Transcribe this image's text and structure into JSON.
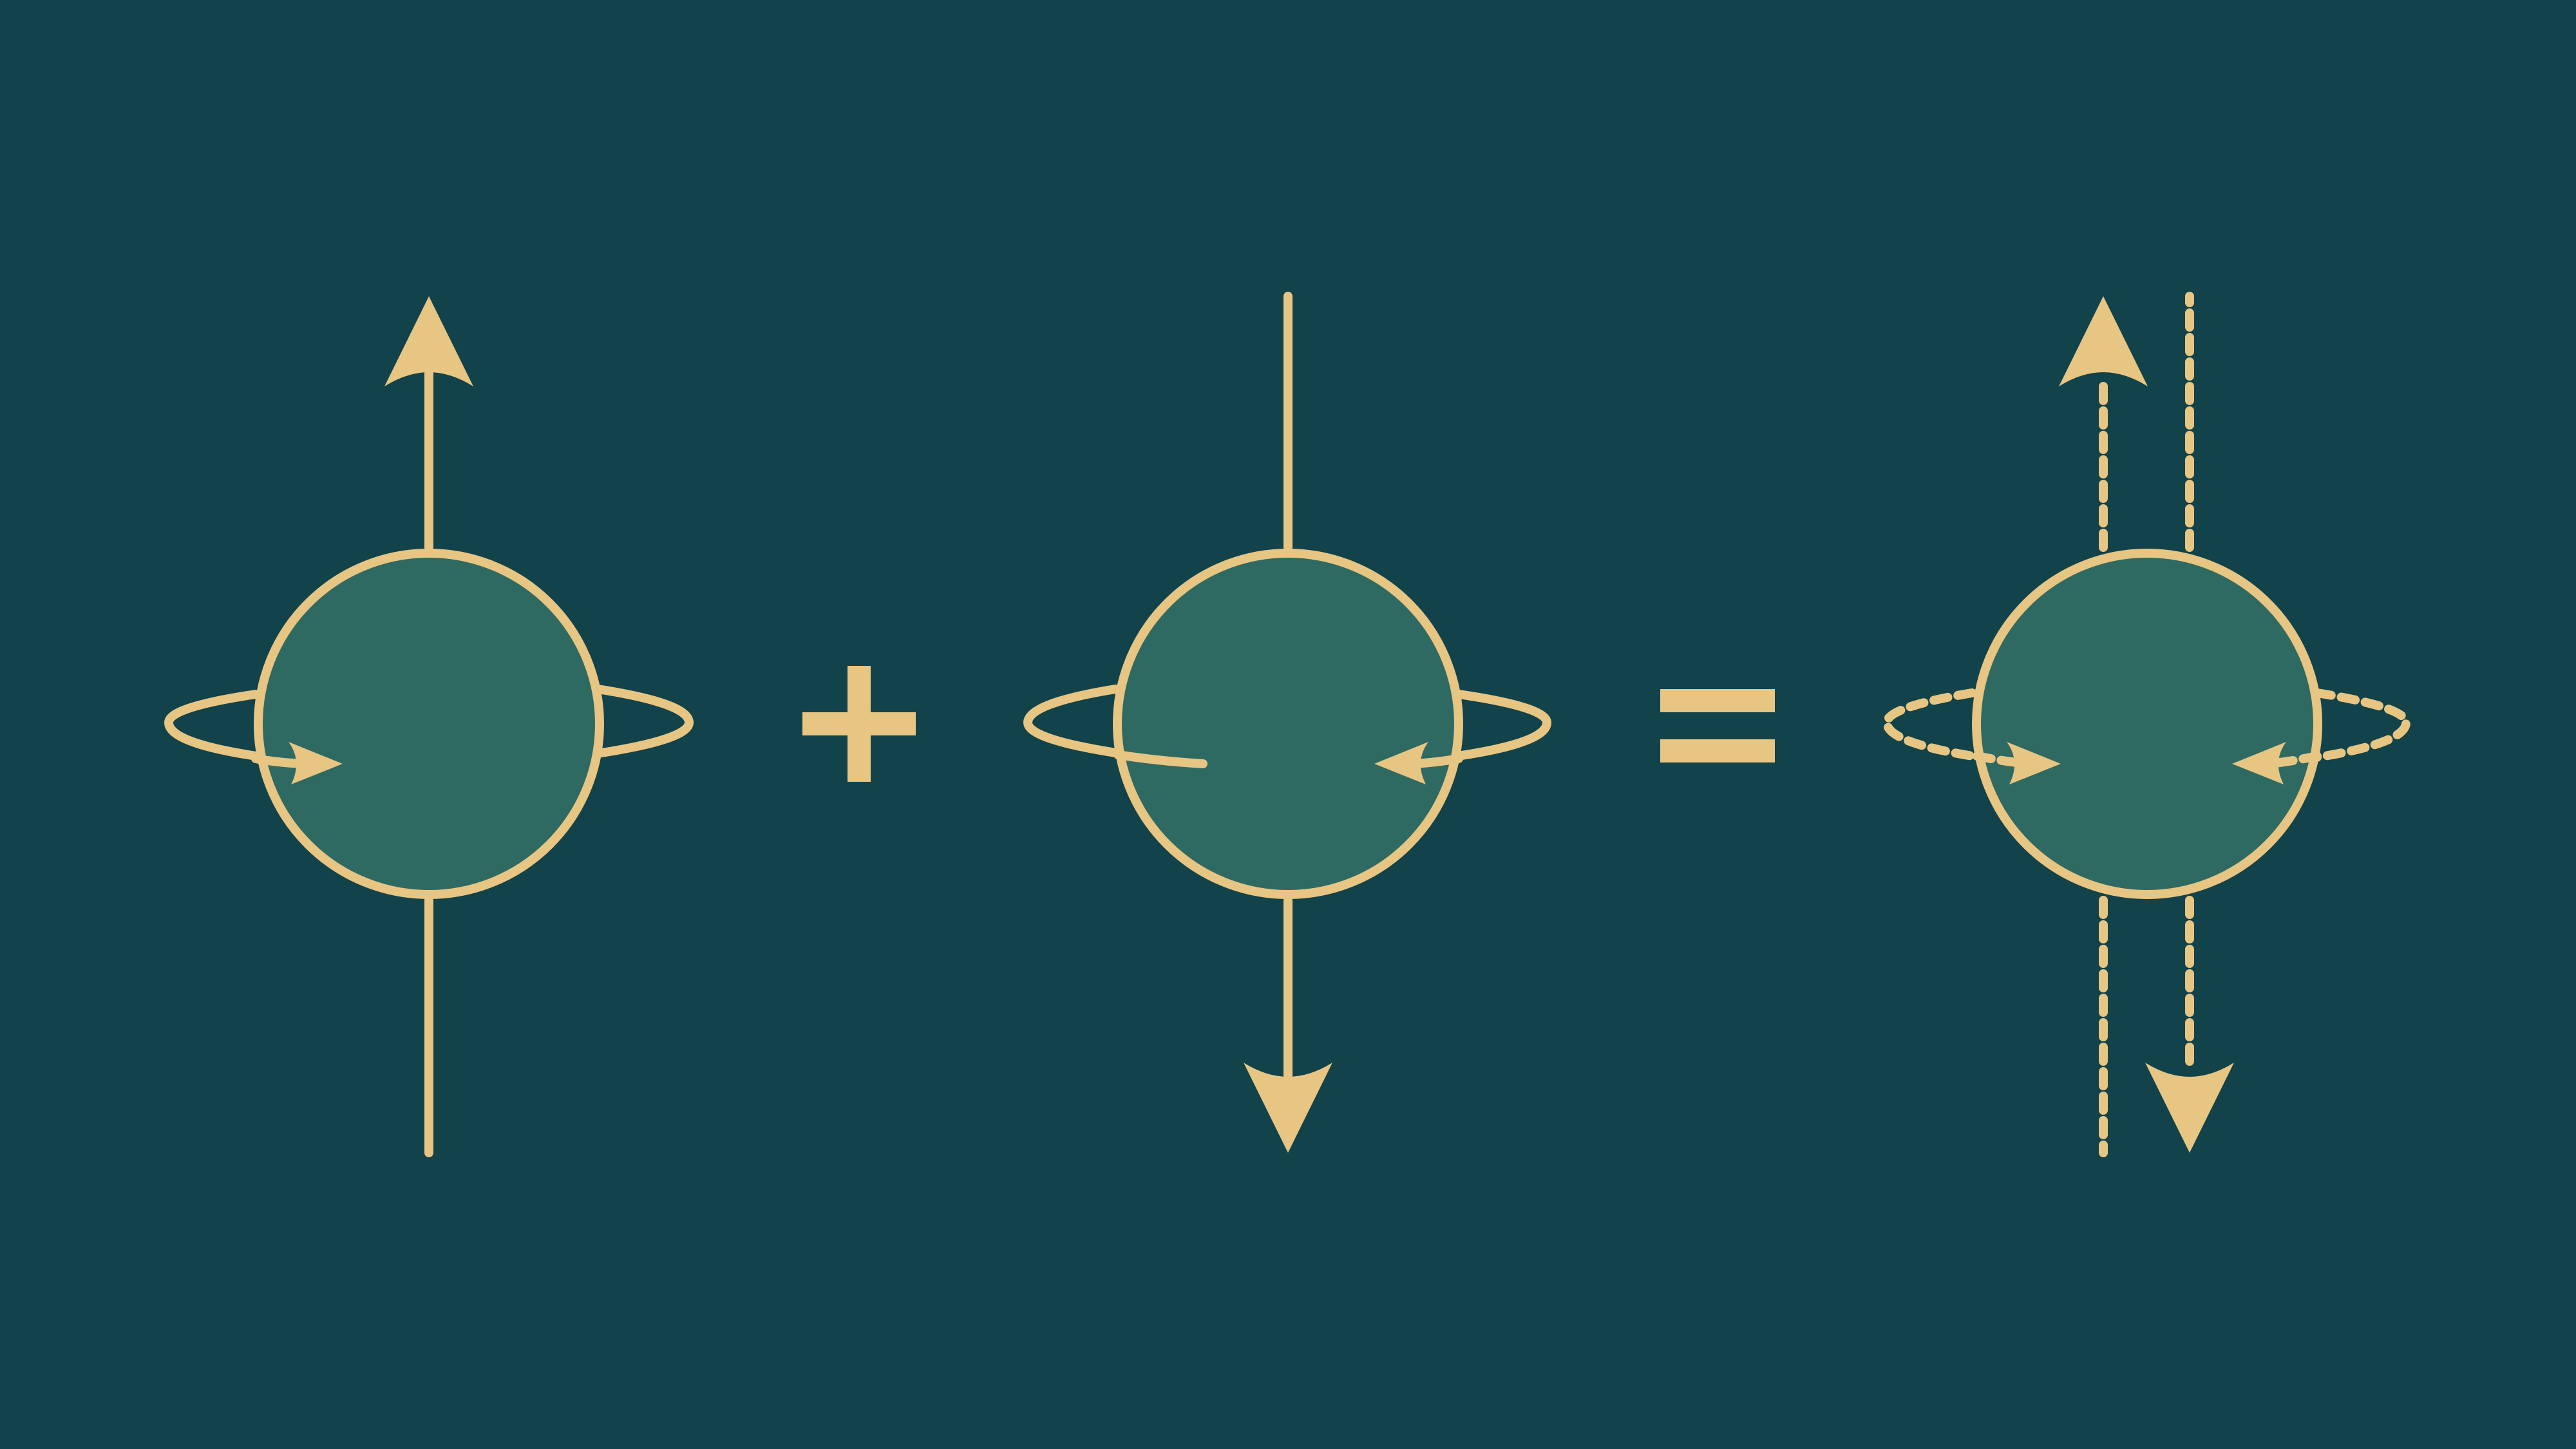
{
  "colors": {
    "background": "#12424A",
    "sphere_fill": "#2F6A62",
    "stroke": "#E7C583"
  },
  "diagram": {
    "panels": [
      {
        "id": "spin-up",
        "axis_arrow": "up",
        "rotation": "clockwise",
        "line_style": "solid"
      },
      {
        "id": "spin-down",
        "axis_arrow": "down",
        "rotation": "counterclockwise",
        "line_style": "solid"
      },
      {
        "id": "superposition",
        "axis_arrow": "both",
        "rotation": "both",
        "line_style": "dashed"
      }
    ],
    "operators": [
      "plus",
      "equals"
    ]
  }
}
